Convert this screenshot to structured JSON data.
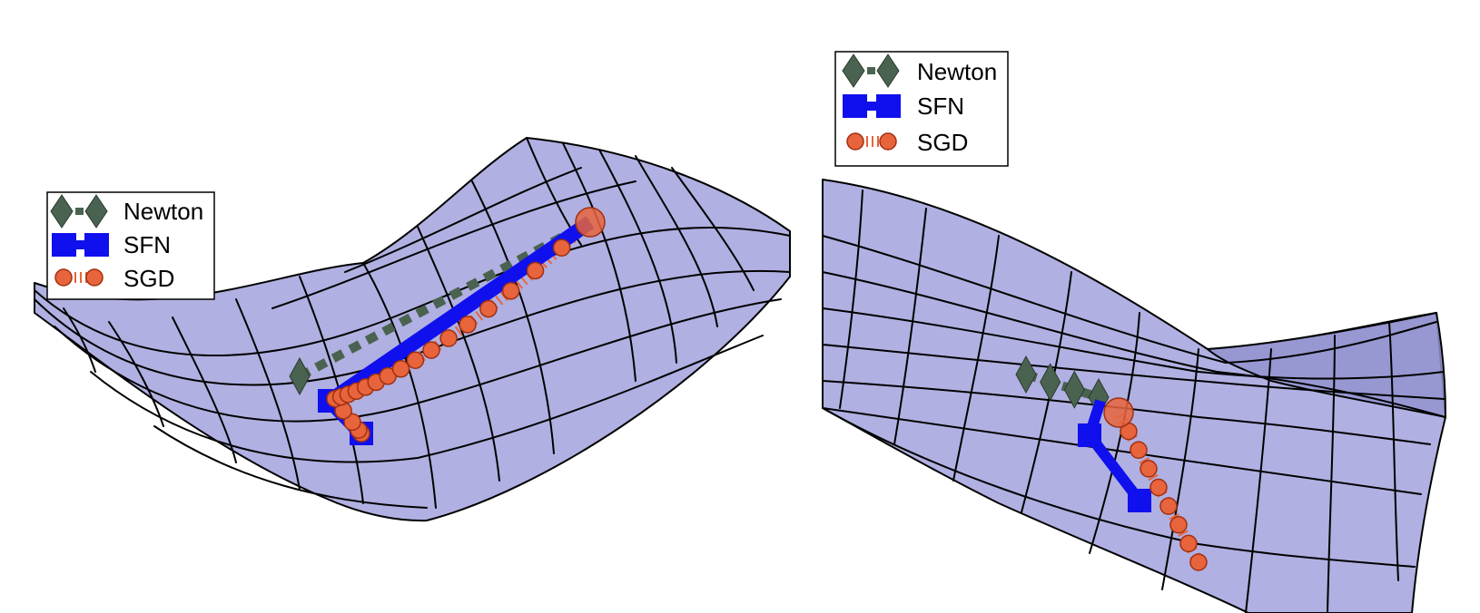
{
  "colors": {
    "newton": "#4a6350",
    "sfn": "#1010ee",
    "sgd": "#e8643c",
    "sgd_edge": "#a03010",
    "surface": "#b0b0e2"
  },
  "chart_data": [
    {
      "type": "line",
      "surface": "saddle-shaped optimization landscape (left view)",
      "grid": true,
      "legend_position": "top-left",
      "legend": [
        "Newton",
        "SFN",
        "SGD"
      ],
      "series": [
        {
          "name": "Newton",
          "marker": "diamond",
          "style": "dashed",
          "x": [
            0,
            1
          ],
          "y": [
            0,
            1
          ]
        },
        {
          "name": "SFN",
          "marker": "square",
          "style": "solid",
          "x": [
            0,
            1,
            2
          ],
          "y": [
            0,
            1,
            2
          ]
        },
        {
          "name": "SGD",
          "marker": "circle",
          "style": "dotted",
          "x": [
            0,
            1,
            2,
            3,
            4,
            5,
            6,
            7,
            8,
            9,
            10,
            11,
            12,
            13,
            14,
            15,
            16,
            17,
            18,
            19,
            20
          ],
          "y": [
            0,
            1,
            2,
            3,
            4,
            5,
            6,
            7,
            8,
            9,
            10,
            11,
            12,
            13,
            14,
            15,
            16,
            17,
            18,
            19,
            20
          ]
        }
      ]
    },
    {
      "type": "line",
      "surface": "saddle-shaped optimization landscape (right view)",
      "grid": true,
      "legend_position": "top-left",
      "legend": [
        "Newton",
        "SFN",
        "SGD"
      ],
      "series": [
        {
          "name": "Newton",
          "marker": "diamond",
          "style": "dashed",
          "x": [
            0,
            1,
            2,
            3
          ],
          "y": [
            0,
            1,
            2,
            3
          ]
        },
        {
          "name": "SFN",
          "marker": "square",
          "style": "solid",
          "x": [
            0,
            1,
            2
          ],
          "y": [
            0,
            1,
            2
          ]
        },
        {
          "name": "SGD",
          "marker": "circle",
          "style": "dotted",
          "x": [
            0,
            1,
            2,
            3,
            4,
            5,
            6,
            7,
            8
          ],
          "y": [
            0,
            1,
            2,
            3,
            4,
            5,
            6,
            7,
            8
          ]
        }
      ]
    }
  ]
}
